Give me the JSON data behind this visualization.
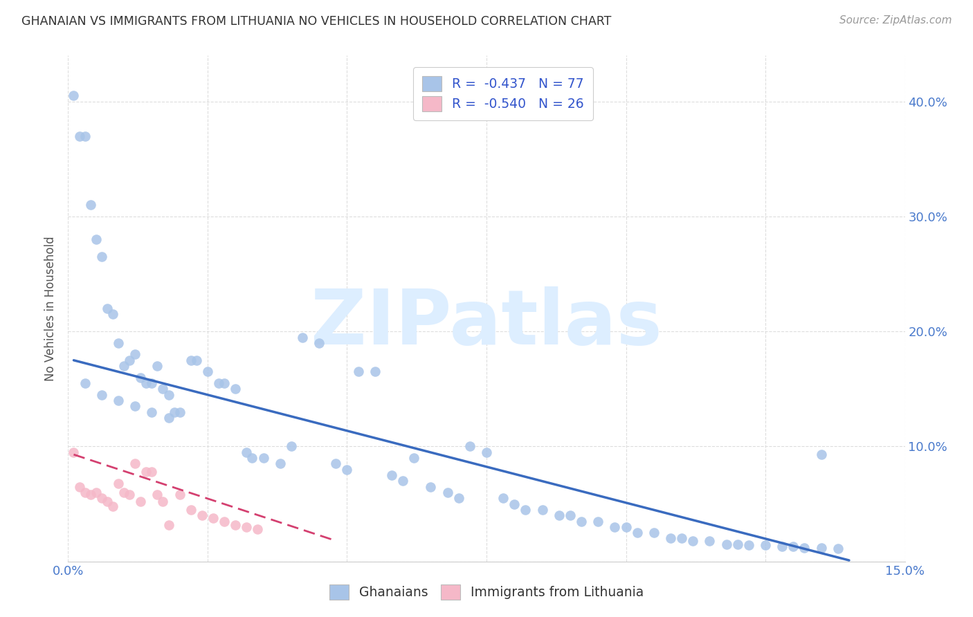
{
  "title": "GHANAIAN VS IMMIGRANTS FROM LITHUANIA NO VEHICLES IN HOUSEHOLD CORRELATION CHART",
  "source": "Source: ZipAtlas.com",
  "ylabel": "No Vehicles in Household",
  "xlim": [
    0.0,
    0.15
  ],
  "ylim": [
    0.0,
    0.44
  ],
  "ytick_values": [
    0.0,
    0.1,
    0.2,
    0.3,
    0.4
  ],
  "ytick_labels": [
    "",
    "10.0%",
    "20.0%",
    "30.0%",
    "40.0%"
  ],
  "xtick_values": [
    0.0,
    0.025,
    0.05,
    0.075,
    0.1,
    0.125,
    0.15
  ],
  "xtick_labels": [
    "0.0%",
    "",
    "",
    "",
    "",
    "",
    "15.0%"
  ],
  "legend_line1": "R =  -0.437   N = 77",
  "legend_line2": "R =  -0.540   N = 26",
  "blue_scatter_color": "#a8c4e8",
  "pink_scatter_color": "#f5b8c8",
  "blue_line_color": "#3a6bbf",
  "pink_line_color": "#d44070",
  "axis_label_color": "#4a7acc",
  "title_color": "#333333",
  "source_color": "#999999",
  "background_color": "#ffffff",
  "grid_color": "#dddddd",
  "watermark_text": "ZIPatlas",
  "watermark_color": "#ddeeff",
  "legend_text_color": "#3355cc",
  "ghanaians_x": [
    0.001,
    0.002,
    0.003,
    0.004,
    0.005,
    0.006,
    0.007,
    0.008,
    0.009,
    0.01,
    0.011,
    0.012,
    0.013,
    0.014,
    0.015,
    0.016,
    0.017,
    0.018,
    0.019,
    0.02,
    0.022,
    0.023,
    0.025,
    0.027,
    0.028,
    0.03,
    0.032,
    0.033,
    0.035,
    0.038,
    0.04,
    0.042,
    0.045,
    0.048,
    0.05,
    0.052,
    0.055,
    0.058,
    0.06,
    0.062,
    0.065,
    0.068,
    0.07,
    0.072,
    0.075,
    0.078,
    0.08,
    0.082,
    0.085,
    0.088,
    0.09,
    0.092,
    0.095,
    0.098,
    0.1,
    0.102,
    0.105,
    0.108,
    0.11,
    0.112,
    0.115,
    0.118,
    0.12,
    0.122,
    0.125,
    0.128,
    0.13,
    0.132,
    0.135,
    0.138,
    0.003,
    0.006,
    0.009,
    0.012,
    0.015,
    0.018,
    0.135
  ],
  "ghanaians_y": [
    0.405,
    0.37,
    0.37,
    0.31,
    0.28,
    0.265,
    0.22,
    0.215,
    0.19,
    0.17,
    0.175,
    0.18,
    0.16,
    0.155,
    0.155,
    0.17,
    0.15,
    0.145,
    0.13,
    0.13,
    0.175,
    0.175,
    0.165,
    0.155,
    0.155,
    0.15,
    0.095,
    0.09,
    0.09,
    0.085,
    0.1,
    0.195,
    0.19,
    0.085,
    0.08,
    0.165,
    0.165,
    0.075,
    0.07,
    0.09,
    0.065,
    0.06,
    0.055,
    0.1,
    0.095,
    0.055,
    0.05,
    0.045,
    0.045,
    0.04,
    0.04,
    0.035,
    0.035,
    0.03,
    0.03,
    0.025,
    0.025,
    0.02,
    0.02,
    0.018,
    0.018,
    0.015,
    0.015,
    0.014,
    0.014,
    0.013,
    0.013,
    0.012,
    0.012,
    0.011,
    0.155,
    0.145,
    0.14,
    0.135,
    0.13,
    0.125,
    0.093
  ],
  "lithuania_x": [
    0.001,
    0.002,
    0.003,
    0.004,
    0.005,
    0.006,
    0.007,
    0.008,
    0.009,
    0.01,
    0.011,
    0.012,
    0.013,
    0.014,
    0.015,
    0.016,
    0.017,
    0.018,
    0.02,
    0.022,
    0.024,
    0.026,
    0.028,
    0.03,
    0.032,
    0.034
  ],
  "lithuania_y": [
    0.095,
    0.065,
    0.06,
    0.058,
    0.06,
    0.055,
    0.052,
    0.048,
    0.068,
    0.06,
    0.058,
    0.085,
    0.052,
    0.078,
    0.078,
    0.058,
    0.052,
    0.032,
    0.058,
    0.045,
    0.04,
    0.038,
    0.035,
    0.032,
    0.03,
    0.028
  ],
  "blue_regline_x": [
    0.001,
    0.14
  ],
  "blue_regline_y": [
    0.175,
    0.001
  ],
  "pink_regline_x": [
    0.001,
    0.048
  ],
  "pink_regline_y": [
    0.093,
    0.018
  ]
}
